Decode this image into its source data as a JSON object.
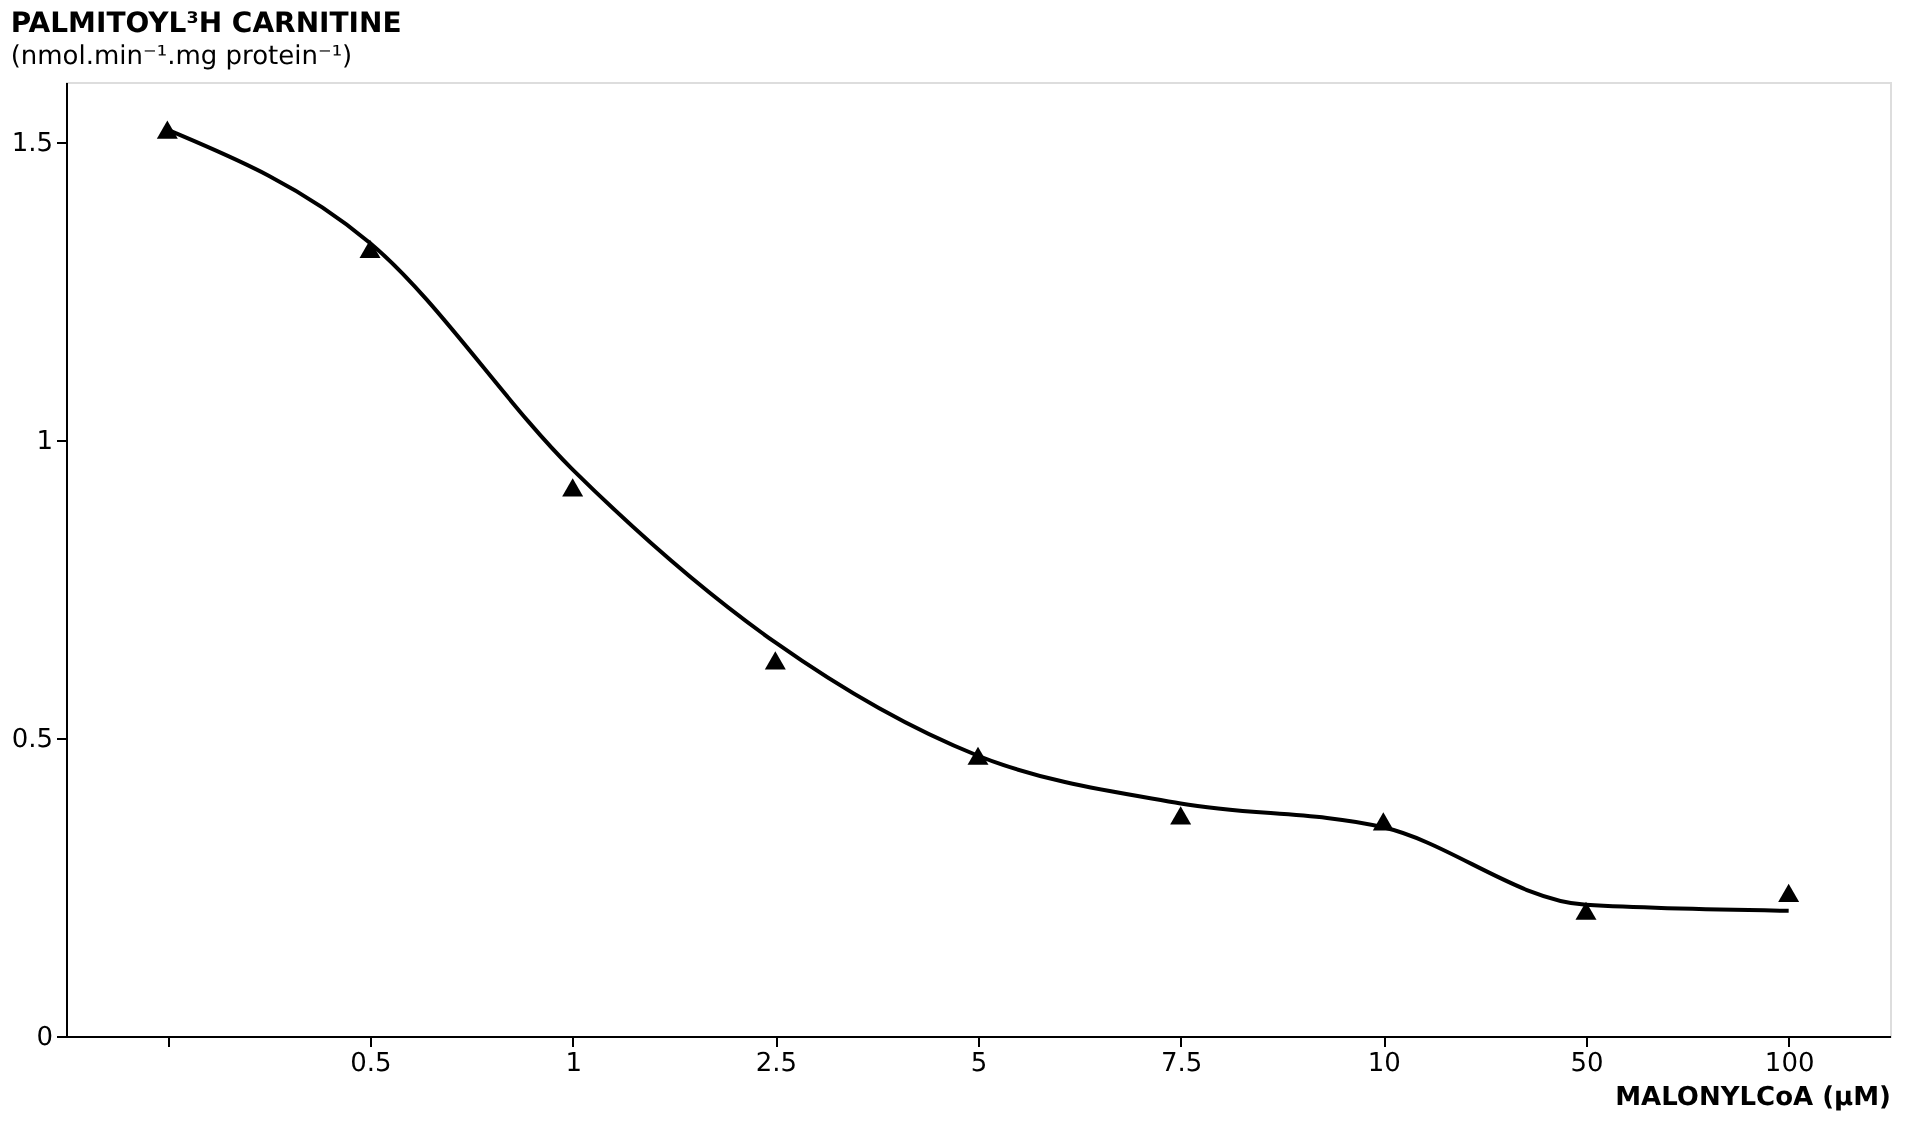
{
  "chart_data": {
    "type": "scatter",
    "title": "PALMITOYL³H CARNITINE",
    "subtitle": "(nmol.min⁻¹.mg protein⁻¹)",
    "xlabel": "MALONYLCoA (µM)",
    "categories": [
      null,
      "0.5",
      "1",
      "2.5",
      "5",
      "7.5",
      "10",
      "50",
      "100"
    ],
    "series": [
      {
        "color": "#000000",
        "marker": "triangle",
        "values": [
          1.52,
          1.32,
          0.92,
          0.63,
          0.47,
          0.37,
          0.36,
          0.21,
          0.24
        ]
      },
      {
        "type": "line",
        "color": "#000000",
        "marker": "none",
        "line_style": "solid",
        "values": [
          1.52,
          1.33,
          0.95,
          0.66,
          0.47,
          0.39,
          0.35,
          0.22,
          0.21
        ]
      }
    ],
    "ylim": [
      0,
      1.6
    ],
    "yticks": [
      0,
      0.5,
      1,
      1.5
    ],
    "grid": false
  }
}
